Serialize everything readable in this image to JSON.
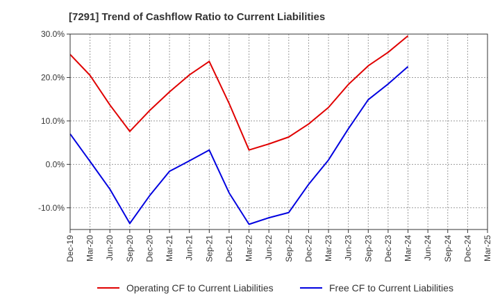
{
  "chart_data": {
    "type": "line",
    "title": "[7291]  Trend of Cashflow Ratio to Current Liabilities",
    "xlabel": "",
    "ylabel": "",
    "ylim": [
      -15,
      30
    ],
    "yticks": [
      30,
      20,
      10,
      0,
      -10
    ],
    "ytick_labels": [
      "30.0%",
      "20.0%",
      "10.0%",
      "0.0%",
      "-10.0%"
    ],
    "x": [
      "Dec-19",
      "Mar-20",
      "Jun-20",
      "Sep-20",
      "Dec-20",
      "Mar-21",
      "Jun-21",
      "Sep-21",
      "Dec-21",
      "Mar-22",
      "Jun-22",
      "Sep-22",
      "Dec-22",
      "Mar-23",
      "Jun-23",
      "Sep-23",
      "Dec-23",
      "Mar-24",
      "Jun-24",
      "Sep-24",
      "Dec-24",
      "Mar-25"
    ],
    "grid": true,
    "legend_position": "bottom",
    "series": [
      {
        "name": "Operating CF to Current Liabilities",
        "color": "#e00000",
        "values": [
          25.3,
          20.5,
          13.7,
          7.6,
          12.4,
          16.7,
          20.6,
          23.7,
          14.0,
          3.3,
          4.7,
          6.3,
          9.3,
          13.1,
          18.4,
          22.7,
          25.8,
          29.6,
          null,
          null,
          null,
          null
        ]
      },
      {
        "name": "Free CF to Current Liabilities",
        "color": "#0000e0",
        "values": [
          7.0,
          0.7,
          -5.7,
          -13.6,
          -7.2,
          -1.6,
          0.8,
          3.3,
          -6.6,
          -13.8,
          -12.3,
          -11.1,
          -4.6,
          1.0,
          8.2,
          14.9,
          18.5,
          22.5,
          null,
          null,
          null,
          null
        ]
      }
    ]
  }
}
